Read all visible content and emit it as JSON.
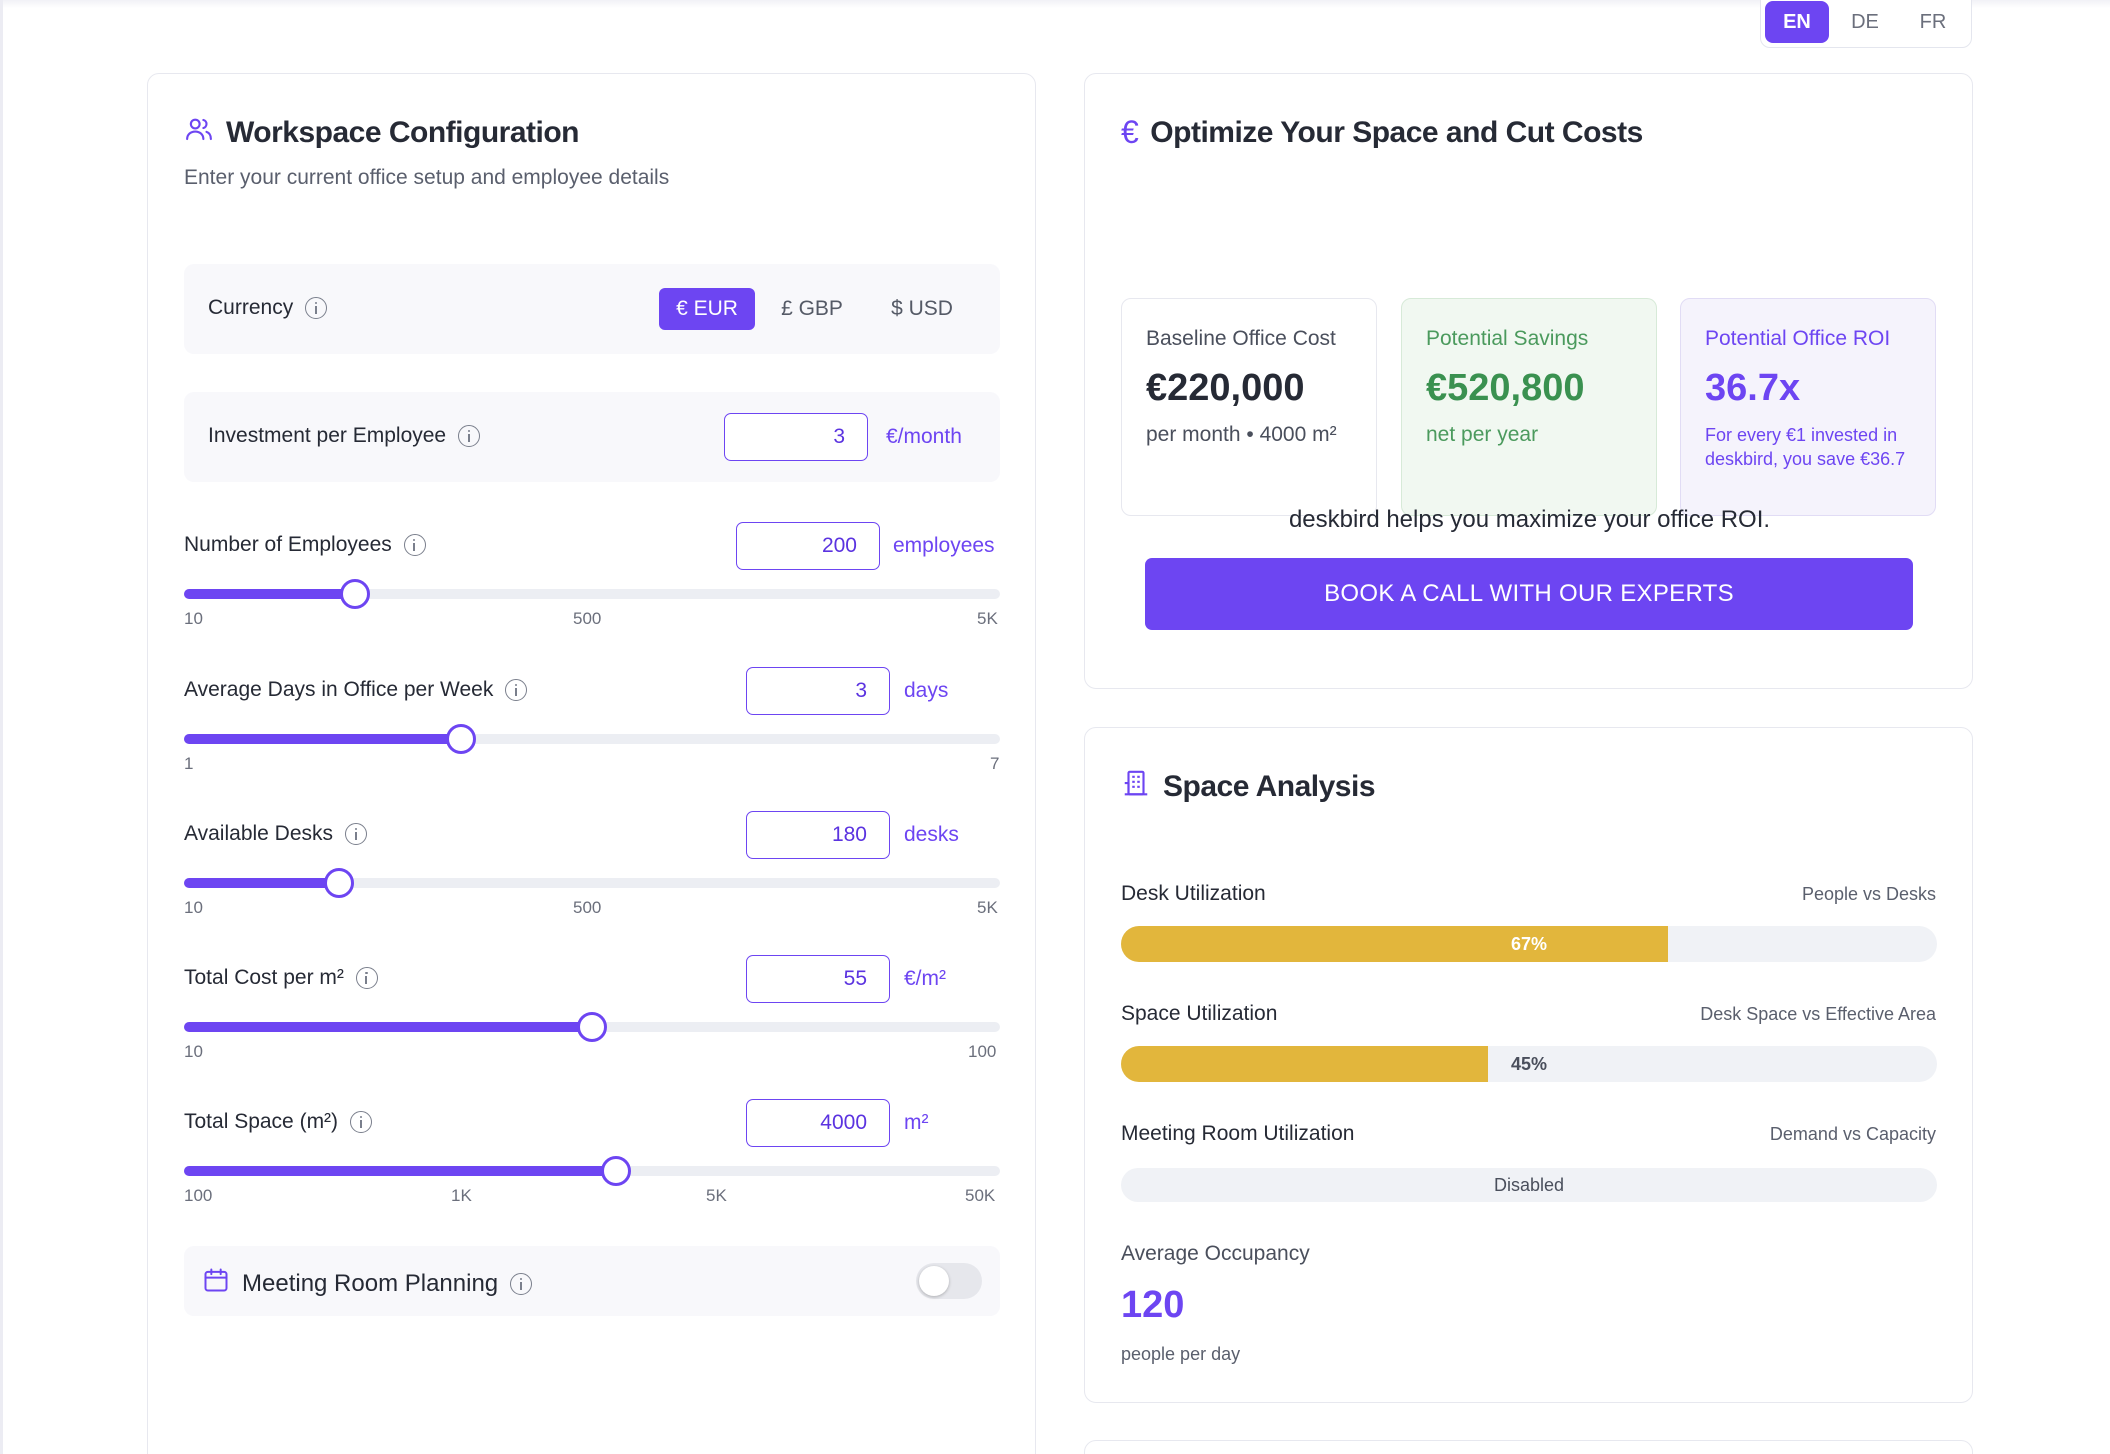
{
  "language": {
    "options": [
      "EN",
      "DE",
      "FR"
    ],
    "selected": "EN"
  },
  "config": {
    "title": "Workspace Configuration",
    "subtitle": "Enter your current office setup and employee details",
    "currency": {
      "label": "Currency",
      "options": [
        {
          "label": "€ EUR",
          "active": true
        },
        {
          "label": "£ GBP",
          "active": false
        },
        {
          "label": "$ USD",
          "active": false
        }
      ]
    },
    "investment": {
      "label": "Investment per Employee",
      "value": "3",
      "unit": "€/month"
    },
    "employees": {
      "label": "Number of Employees",
      "value": "200",
      "unit": "employees",
      "level": 0.21,
      "ticks": [
        "10",
        "500",
        "5K"
      ]
    },
    "days": {
      "label": "Average Days in Office per Week",
      "value": "3",
      "unit": "days",
      "level": 0.34,
      "ticks": [
        "1",
        "7"
      ]
    },
    "desks": {
      "label": "Available Desks",
      "value": "180",
      "unit": "desks",
      "level": 0.19,
      "ticks": [
        "10",
        "500",
        "5K"
      ]
    },
    "cost": {
      "label": "Total Cost per m²",
      "value": "55",
      "unit": "€/m²",
      "level": 0.5,
      "ticks": [
        "10",
        "100"
      ]
    },
    "space": {
      "label": "Total Space (m²)",
      "value": "4000",
      "unit": "m²",
      "level": 0.53,
      "ticks": [
        "100",
        "1K",
        "5K",
        "50K"
      ]
    },
    "meeting": {
      "label": "Meeting Room Planning",
      "enabled": false
    }
  },
  "optimize": {
    "title": "Optimize Your Space and Cut Costs",
    "baseline": {
      "label": "Baseline Office Cost",
      "value": "€220,000",
      "sub": "per month • 4000 m²"
    },
    "savings": {
      "label": "Potential Savings",
      "value": "€520,800",
      "sub": "net per year"
    },
    "roi": {
      "label": "Potential Office ROI",
      "value": "36.7x",
      "sub": "For every €1 invested in deskbird, you save €36.7"
    },
    "cta_text": "deskbird helps you maximize your office ROI.",
    "cta_button": "BOOK A CALL WITH OUR EXPERTS"
  },
  "analysis": {
    "title": "Space Analysis",
    "desk": {
      "label": "Desk Utilization",
      "sub": "People vs Desks",
      "percent": 67,
      "text": "67%"
    },
    "space": {
      "label": "Space Utilization",
      "sub": "Desk Space vs Effective Area",
      "percent": 45,
      "text": "45%"
    },
    "meeting": {
      "label": "Meeting Room Utilization",
      "sub": "Demand vs Capacity",
      "percent": 0,
      "text": "Disabled"
    },
    "occupancy": {
      "label": "Average Occupancy",
      "value": "120",
      "sub": "people per day"
    }
  },
  "colors": {
    "accent": "#6d45f2",
    "bar": "#e2b63c",
    "green": "#3a9150"
  },
  "icons": [
    "users-icon",
    "info-icon",
    "euro-icon",
    "building-icon",
    "calendar-icon"
  ]
}
